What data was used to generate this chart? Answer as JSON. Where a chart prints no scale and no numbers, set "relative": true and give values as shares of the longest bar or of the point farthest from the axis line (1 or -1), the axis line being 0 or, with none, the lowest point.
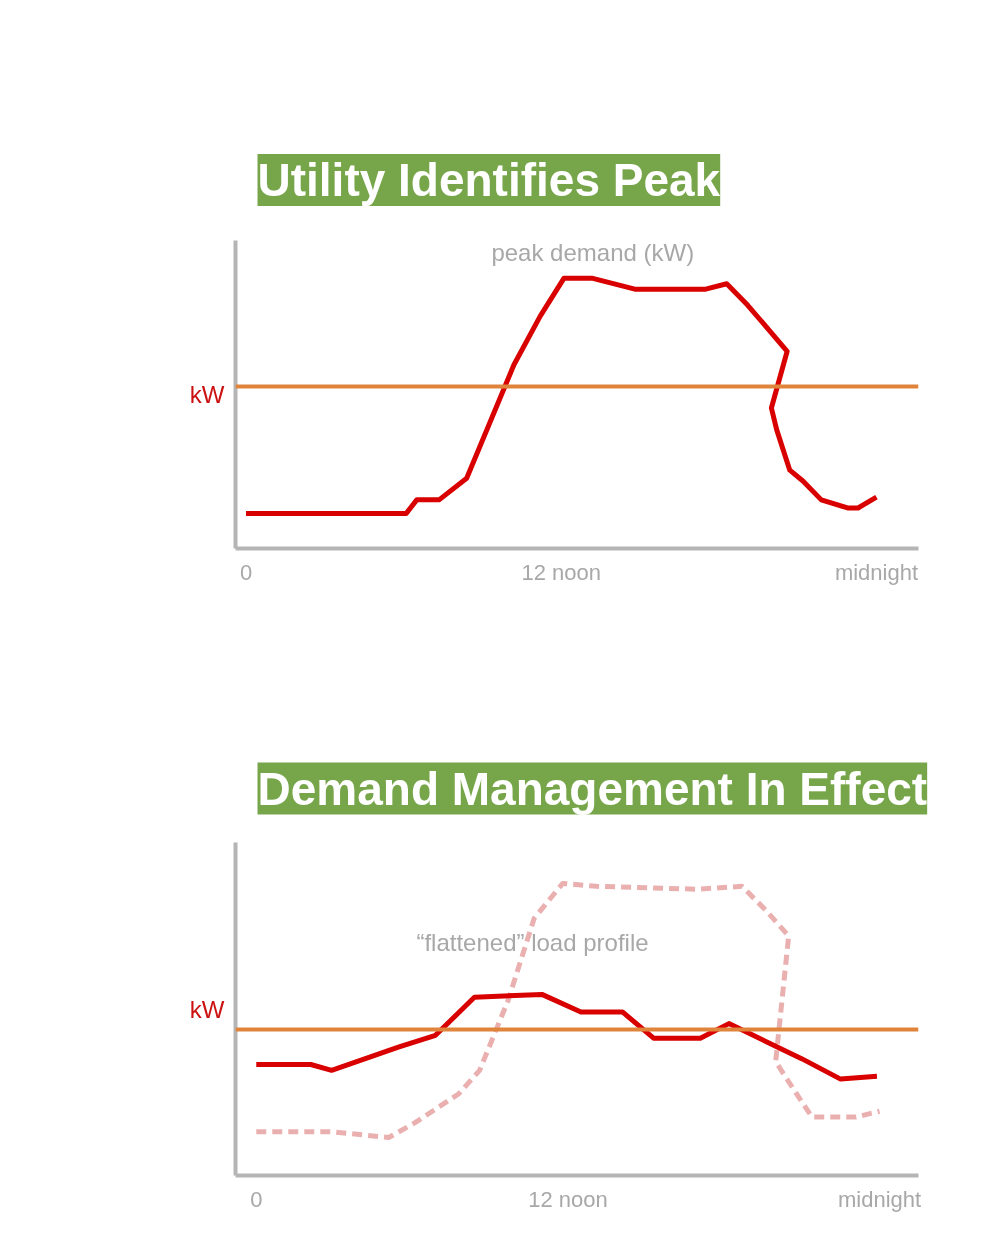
{
  "chart_data": [
    {
      "type": "line",
      "title": "Utility Identifies Peak",
      "ylabel": "kW",
      "relative": true,
      "grid": false,
      "xlim": [
        -0.4,
        25.6
      ],
      "xticks": [
        {
          "value": 0,
          "label": "0"
        },
        {
          "value": 12,
          "label": "12 noon"
        },
        {
          "value": 24,
          "label": "midnight"
        }
      ],
      "annotations": [
        {
          "text": "peak demand (kW)",
          "x": 13.2,
          "y": 1.0
        }
      ],
      "ref_lines": [
        {
          "axis": "y",
          "value": 0.6,
          "color": "#e0843c"
        }
      ],
      "series": [
        {
          "color": "#d90000",
          "line_style": "solid",
          "x": [
            0,
            6.1,
            6.5,
            7.35,
            8.4,
            10.2,
            11.2,
            12.1,
            13.2,
            14.8,
            15.8,
            17.5,
            18.3,
            19.1,
            20.6,
            20.0,
            20.2,
            20.7,
            21.2,
            21.9,
            22.9,
            23.3,
            24
          ],
          "values": [
            0.13,
            0.13,
            0.18,
            0.18,
            0.26,
            0.68,
            0.86,
            1.0,
            1.0,
            0.96,
            0.96,
            0.96,
            0.98,
            0.9,
            0.73,
            0.52,
            0.44,
            0.29,
            0.25,
            0.18,
            0.15,
            0.15,
            0.19
          ]
        }
      ]
    },
    {
      "type": "line",
      "title": "Demand Management In Effect",
      "ylabel": "kW",
      "relative": true,
      "grid": false,
      "xlim": [
        -0.8,
        25.5
      ],
      "xticks": [
        {
          "value": 0,
          "label": "0"
        },
        {
          "value": 12,
          "label": "12 noon"
        },
        {
          "value": 24,
          "label": "midnight"
        }
      ],
      "annotations": [
        "“flattened” load profile"
      ],
      "ref_lines": [
        {
          "axis": "y",
          "value": 0.5,
          "color": "#e0843c"
        }
      ],
      "series": [
        {
          "color": "#eab0b0",
          "line_style": "dashed",
          "x": [
            0,
            2.9,
            5.1,
            6.1,
            7.8,
            8.6,
            9.7,
            10.7,
            11.8,
            13.1,
            17.0,
            18.7,
            19.6,
            20.5,
            20.0,
            20.8,
            21.4,
            22.3,
            23.1,
            24
          ],
          "values": [
            0.15,
            0.15,
            0.13,
            0.18,
            0.28,
            0.36,
            0.6,
            0.88,
            1.0,
            0.99,
            0.98,
            0.99,
            0.91,
            0.82,
            0.39,
            0.28,
            0.2,
            0.2,
            0.2,
            0.22
          ]
        },
        {
          "color": "#d90000",
          "line_style": "solid",
          "x": [
            0,
            2.1,
            2.9,
            5.5,
            6.9,
            8.4,
            11.0,
            12.5,
            14.1,
            15.3,
            17.1,
            18.2,
            19.6,
            21.0,
            22.5,
            23.9
          ],
          "values": [
            0.38,
            0.38,
            0.36,
            0.44,
            0.48,
            0.61,
            0.62,
            0.56,
            0.56,
            0.47,
            0.47,
            0.52,
            0.46,
            0.4,
            0.33,
            0.34
          ]
        }
      ]
    }
  ]
}
